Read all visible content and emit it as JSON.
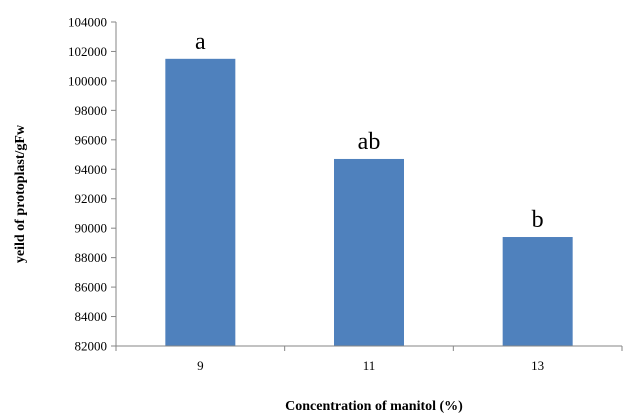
{
  "chart_data": {
    "type": "bar",
    "categories": [
      "9",
      "11",
      "13"
    ],
    "values": [
      101500,
      94700,
      89400
    ],
    "annotations": [
      "a",
      "ab",
      "b"
    ],
    "xlabel": "Concentration of manitol (%)",
    "ylabel": "yeild of protoplast/gFw",
    "ylim": [
      82000,
      104000
    ],
    "yticks": [
      "82000",
      "84000",
      "86000",
      "88000",
      "90000",
      "92000",
      "94000",
      "96000",
      "98000",
      "100000",
      "102000",
      "104000"
    ],
    "grid": false,
    "legend": "none",
    "bar_color": "#4F81BD",
    "axis_color": "#868686"
  }
}
